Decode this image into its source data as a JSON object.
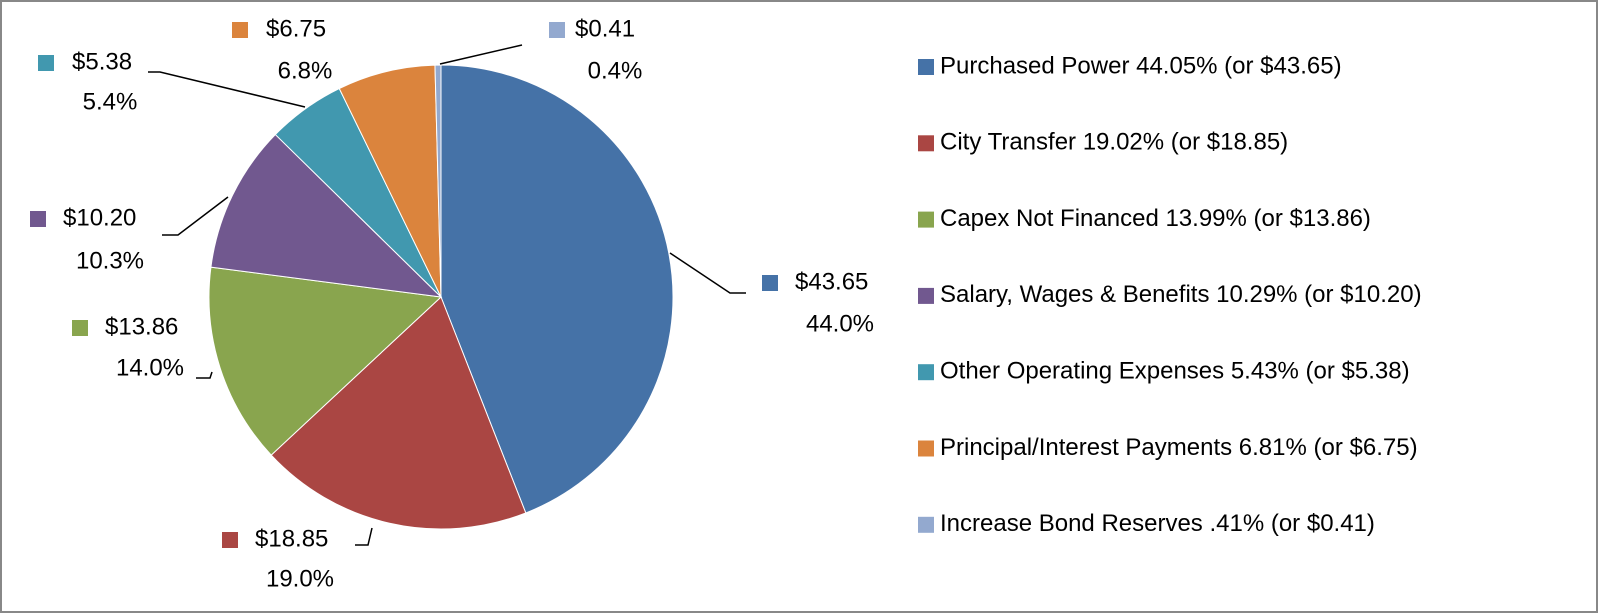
{
  "chart_data": {
    "type": "pie",
    "categories": [
      "Purchased Power 44.05% (or $43.65)",
      "City Transfer 19.02% (or $18.85)",
      "Capex Not Financed 13.99% (or $13.86)",
      "Salary, Wages & Benefits 10.29% (or $10.20)",
      "Other Operating Expenses 5.43% (or $5.38)",
      "Principal/Interest Payments 6.81% (or $6.75)",
      "Increase Bond Reserves .41% (or $0.41)"
    ],
    "values": [
      43.65,
      18.85,
      13.86,
      10.2,
      5.38,
      6.75,
      0.41
    ],
    "value_labels": [
      "$43.65",
      "$18.85",
      "$13.86",
      "$10.20",
      "$5.38",
      "$6.75",
      "$0.41"
    ],
    "percent_labels": [
      "44.0%",
      "19.0%",
      "14.0%",
      "10.3%",
      "5.4%",
      "6.8%",
      "0.4%"
    ],
    "colors": [
      "#4572A7",
      "#AA4643",
      "#89A54E",
      "#71588F",
      "#4198AF",
      "#DB843D",
      "#93A9CF"
    ],
    "legend": "right"
  }
}
